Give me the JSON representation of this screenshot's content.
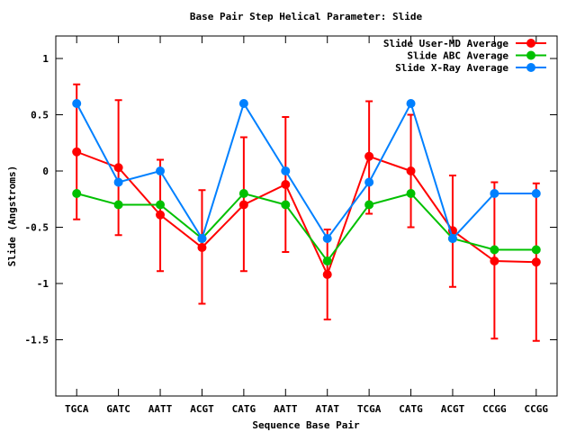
{
  "chart_data": {
    "type": "line",
    "title": "Base Pair Step Helical Parameter: Slide",
    "xlabel": "Sequence Base Pair",
    "ylabel": "Slide (Angstroms)",
    "ylim": [
      -2,
      1.2
    ],
    "yticks": [
      1,
      0.5,
      0,
      -0.5,
      -1,
      -1.5
    ],
    "ytick_labels": [
      "1",
      "0.5",
      "0",
      "-0.5",
      "-1",
      "-1.5"
    ],
    "categories": [
      "TGCA",
      "GATC",
      "AATT",
      "ACGT",
      "CATG",
      "AATT",
      "ATAT",
      "TCGA",
      "CATG",
      "ACGT",
      "CCGG",
      "CCGG"
    ],
    "legend_position": "top-right",
    "series": [
      {
        "name": "Slide User-MD Average",
        "color": "#ff0000",
        "values": [
          0.17,
          0.03,
          -0.39,
          -0.68,
          -0.3,
          -0.12,
          -0.92,
          0.13,
          0.0,
          -0.53,
          -0.8,
          -0.81
        ],
        "error_low": [
          -0.43,
          -0.57,
          -0.89,
          -1.18,
          -0.89,
          -0.72,
          -1.32,
          -0.38,
          -0.5,
          -1.03,
          -1.49,
          -1.51
        ],
        "error_high": [
          0.77,
          0.63,
          0.1,
          -0.17,
          0.3,
          0.48,
          -0.52,
          0.62,
          0.5,
          -0.04,
          -0.1,
          -0.11
        ]
      },
      {
        "name": "Slide ABC Average",
        "color": "#00c000",
        "values": [
          -0.2,
          -0.3,
          -0.3,
          -0.6,
          -0.2,
          -0.3,
          -0.8,
          -0.3,
          -0.2,
          -0.6,
          -0.7,
          -0.7
        ]
      },
      {
        "name": "Slide X-Ray Average",
        "color": "#0080ff",
        "values": [
          0.6,
          -0.1,
          0.0,
          -0.6,
          0.6,
          0.0,
          -0.6,
          -0.1,
          0.6,
          -0.6,
          -0.2,
          -0.2
        ]
      }
    ]
  }
}
